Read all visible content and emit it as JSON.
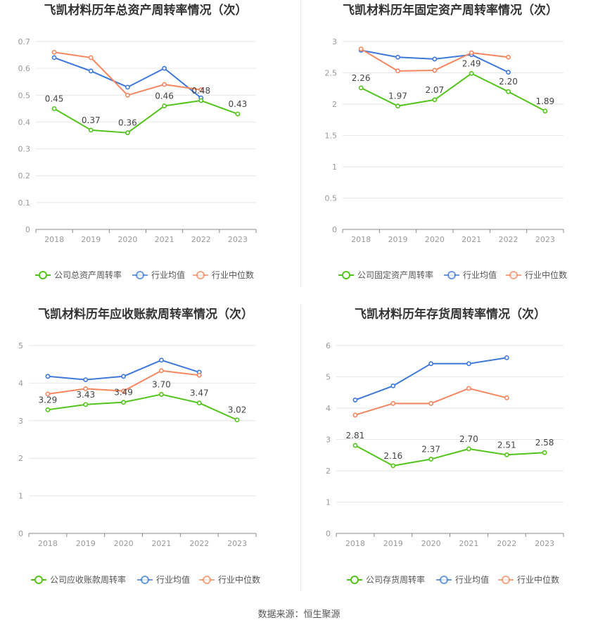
{
  "footer": {
    "source": "数据来源：恒生聚源"
  },
  "colors": {
    "company": "#52c41a",
    "avg": "#3d78dc",
    "median": "#f4875f",
    "grid": "#e6e6e6",
    "axis": "#999999",
    "title": "#333333"
  },
  "chart_data": [
    {
      "type": "line",
      "title": "飞凯材料历年总资产周转率情况（次）",
      "categories": [
        "2018",
        "2019",
        "2020",
        "2021",
        "2022",
        "2023"
      ],
      "yticks": [
        "0",
        "0.1",
        "0.2",
        "0.3",
        "0.4",
        "0.5",
        "0.6",
        "0.7"
      ],
      "ylim": [
        0,
        0.7
      ],
      "series": [
        {
          "name": "公司总资产周转率",
          "values": [
            0.45,
            0.37,
            0.36,
            0.46,
            0.48,
            0.43
          ],
          "labels": [
            "0.45",
            "0.37",
            "0.36",
            "0.46",
            "0.48",
            "0.43"
          ]
        },
        {
          "name": "行业均值",
          "values": [
            0.64,
            0.59,
            0.53,
            0.6,
            0.49,
            null
          ]
        },
        {
          "name": "行业中位数",
          "values": [
            0.66,
            0.64,
            0.5,
            0.54,
            0.52,
            null
          ]
        }
      ]
    },
    {
      "type": "line",
      "title": "飞凯材料历年固定资产周转率情况（次）",
      "categories": [
        "2018",
        "2019",
        "2020",
        "2021",
        "2022",
        "2023"
      ],
      "yticks": [
        "0",
        "0.5",
        "1",
        "1.5",
        "2",
        "2.5",
        "3"
      ],
      "ylim": [
        0,
        3
      ],
      "series": [
        {
          "name": "公司固定资产周转率",
          "values": [
            2.26,
            1.97,
            2.07,
            2.49,
            2.2,
            1.89
          ],
          "labels": [
            "2.26",
            "1.97",
            "2.07",
            "2.49",
            "2.20",
            "1.89"
          ]
        },
        {
          "name": "行业均值",
          "values": [
            2.86,
            2.75,
            2.72,
            2.79,
            2.51,
            null
          ]
        },
        {
          "name": "行业中位数",
          "values": [
            2.88,
            2.53,
            2.54,
            2.82,
            2.75,
            null
          ]
        }
      ]
    },
    {
      "type": "line",
      "title": "飞凯材料历年应收账款周转率情况（次）",
      "categories": [
        "2018",
        "2019",
        "2020",
        "2021",
        "2022",
        "2023"
      ],
      "yticks": [
        "0",
        "1",
        "2",
        "3",
        "4",
        "5"
      ],
      "ylim": [
        0,
        5
      ],
      "series": [
        {
          "name": "公司应收账款周转率",
          "values": [
            3.29,
            3.43,
            3.49,
            3.7,
            3.47,
            3.02
          ],
          "labels": [
            "3.29",
            "3.43",
            "3.49",
            "3.70",
            "3.47",
            "3.02"
          ]
        },
        {
          "name": "行业均值",
          "values": [
            4.18,
            4.09,
            4.18,
            4.61,
            4.29,
            null
          ]
        },
        {
          "name": "行业中位数",
          "values": [
            3.71,
            3.85,
            3.79,
            4.33,
            4.21,
            null
          ]
        }
      ]
    },
    {
      "type": "line",
      "title": "飞凯材料历年存货周转率情况（次）",
      "categories": [
        "2018",
        "2019",
        "2020",
        "2021",
        "2022",
        "2023"
      ],
      "yticks": [
        "0",
        "1",
        "2",
        "3",
        "4",
        "5",
        "6"
      ],
      "ylim": [
        0,
        6
      ],
      "series": [
        {
          "name": "公司存货周转率",
          "values": [
            2.81,
            2.16,
            2.37,
            2.7,
            2.51,
            2.58
          ],
          "labels": [
            "2.81",
            "2.16",
            "2.37",
            "2.70",
            "2.51",
            "2.58"
          ]
        },
        {
          "name": "行业均值",
          "values": [
            4.26,
            4.71,
            5.42,
            5.42,
            5.61,
            null
          ]
        },
        {
          "name": "行业中位数",
          "values": [
            3.78,
            4.15,
            4.15,
            4.63,
            4.33,
            null
          ]
        }
      ]
    }
  ]
}
